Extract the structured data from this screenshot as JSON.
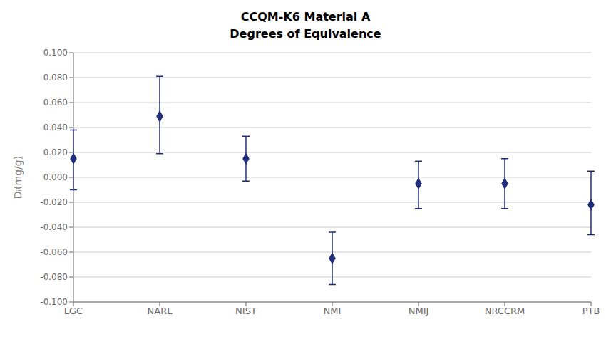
{
  "chart_data": {
    "type": "scatter",
    "title": "CCQM-K6 Material A",
    "subtitle": "Degrees of Equivalence",
    "ylabel": "Dᵢ(mg/g)",
    "categories": [
      "LGC",
      "NARL",
      "NIST",
      "NMI",
      "NMIJ",
      "NRCCRM",
      "PTB"
    ],
    "values": [
      0.015,
      0.049,
      0.015,
      -0.065,
      -0.005,
      -0.005,
      -0.022
    ],
    "err_upper": [
      0.038,
      0.081,
      0.033,
      -0.044,
      0.013,
      0.015,
      0.005
    ],
    "err_lower": [
      -0.01,
      0.019,
      -0.003,
      -0.086,
      -0.025,
      -0.025,
      -0.046
    ],
    "color": "#1F2D7B",
    "marker": "diamond",
    "ylim": [
      -0.1,
      0.1
    ],
    "yticks": [
      {
        "value": -0.1,
        "label": "-0.100"
      },
      {
        "value": -0.08,
        "label": "-0.080"
      },
      {
        "value": -0.06,
        "label": "-0.060"
      },
      {
        "value": -0.04,
        "label": "-0.040"
      },
      {
        "value": -0.02,
        "label": "-0.020"
      },
      {
        "value": 0,
        "label": "0.000"
      },
      {
        "value": 0.02,
        "label": "0.020"
      },
      {
        "value": 0.04,
        "label": "0.040"
      },
      {
        "value": 0.06,
        "label": "0.060"
      },
      {
        "value": 0.08,
        "label": "0.080"
      },
      {
        "value": 0.1,
        "label": "0.100"
      }
    ],
    "grid": true
  }
}
